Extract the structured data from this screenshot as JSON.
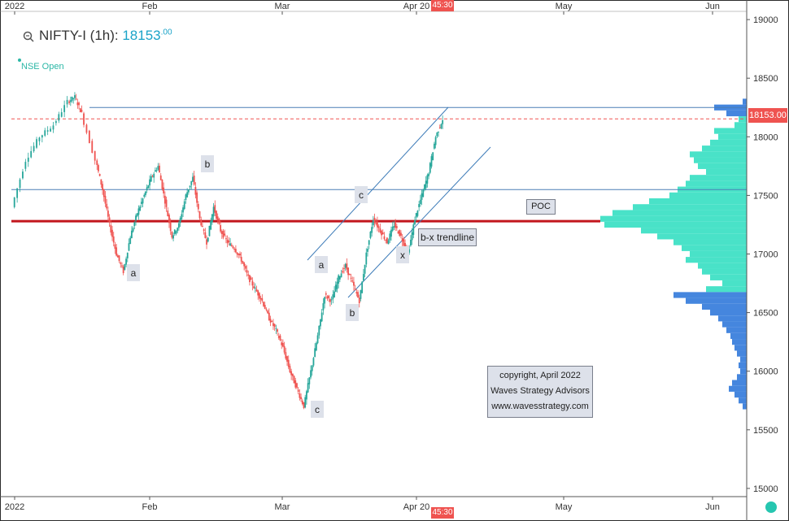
{
  "header": {
    "symbol": "NIFTY-I (1h):",
    "price_main": "18153",
    "price_decimals": ".00",
    "session_label": "NSE Open"
  },
  "price_tag": "18153.00",
  "time_tag_top": "45:30",
  "time_tag_bottom": "45:30",
  "copyright": {
    "line1": "copyright, April 2022",
    "line2": "Waves Strategy Advisors",
    "line3": "www.wavesstrategy.com"
  },
  "labels": {
    "poc": "POC",
    "bx_trendline": "b-x trendline"
  },
  "chart_data": {
    "type": "candlestick",
    "x_ticks_top": [
      "2022",
      "Feb",
      "Mar",
      "Apr 20",
      "May",
      "Jun"
    ],
    "x_ticks_bottom": [
      "2022",
      "Feb",
      "Mar",
      "Apr 20",
      "May",
      "Jun"
    ],
    "y_ticks": [
      "19000",
      "18500",
      "18000",
      "17500",
      "17000",
      "16500",
      "16000",
      "15500",
      "15000"
    ],
    "ylim": [
      14930,
      19070
    ],
    "last_price": 18153,
    "path": [
      [
        0,
        17400
      ],
      [
        2,
        17800
      ],
      [
        4,
        18000
      ],
      [
        6,
        18100
      ],
      [
        8,
        18300
      ],
      [
        9,
        18340
      ],
      [
        10,
        18200
      ],
      [
        12,
        17800
      ],
      [
        13,
        17550
      ],
      [
        14,
        17250
      ],
      [
        15,
        17000
      ],
      [
        16,
        16850
      ],
      [
        17,
        17150
      ],
      [
        18,
        17350
      ],
      [
        19,
        17500
      ],
      [
        20,
        17650
      ],
      [
        21,
        17750
      ],
      [
        22,
        17450
      ],
      [
        23,
        17150
      ],
      [
        24,
        17250
      ],
      [
        25,
        17500
      ],
      [
        26,
        17650
      ],
      [
        27,
        17300
      ],
      [
        28,
        17100
      ],
      [
        29,
        17400
      ],
      [
        30,
        17200
      ],
      [
        31,
        17100
      ],
      [
        32,
        17050
      ],
      [
        33,
        16950
      ],
      [
        34,
        16800
      ],
      [
        35,
        16700
      ],
      [
        36,
        16600
      ],
      [
        37,
        16450
      ],
      [
        38,
        16350
      ],
      [
        39,
        16200
      ],
      [
        40,
        16000
      ],
      [
        41,
        15850
      ],
      [
        42,
        15700
      ],
      [
        43,
        16000
      ],
      [
        44,
        16300
      ],
      [
        45,
        16650
      ],
      [
        46,
        16600
      ],
      [
        47,
        16800
      ],
      [
        48,
        16900
      ],
      [
        49,
        16750
      ],
      [
        50,
        16600
      ],
      [
        51,
        17000
      ],
      [
        52,
        17300
      ],
      [
        53,
        17200
      ],
      [
        54,
        17100
      ],
      [
        55,
        17250
      ],
      [
        56,
        17150
      ],
      [
        57,
        17000
      ],
      [
        58,
        17300
      ],
      [
        59,
        17500
      ],
      [
        60,
        17700
      ],
      [
        61,
        18000
      ],
      [
        62,
        18150
      ]
    ],
    "wave_labels": [
      "a",
      "b",
      "c",
      "a",
      "b",
      "c",
      "x"
    ],
    "horizontal_levels": [
      {
        "name": "upper-resistance",
        "value": 18250,
        "color": "#4a7fb5"
      },
      {
        "name": "last-price-line",
        "value": 18153,
        "color": "#ef5350"
      },
      {
        "name": "support",
        "value": 17550,
        "color": "#4a7fb5"
      },
      {
        "name": "poc",
        "value": 17280,
        "color": "#c2161d"
      }
    ],
    "volume_profile": {
      "buckets": [
        18300,
        18250,
        18200,
        18150,
        18100,
        18050,
        18000,
        17950,
        17900,
        17850,
        17800,
        17750,
        17700,
        17650,
        17600,
        17550,
        17500,
        17450,
        17400,
        17350,
        17300,
        17250,
        17200,
        17150,
        17100,
        17050,
        17000,
        16950,
        16900,
        16850,
        16800,
        16750,
        16700,
        16650,
        16600,
        16550,
        16500,
        16450,
        16400,
        16350,
        16300,
        16250,
        16200,
        16150,
        16100,
        16050,
        16000,
        15950,
        15900,
        15850,
        15800,
        15750,
        15700
      ],
      "values": [
        5,
        40,
        25,
        10,
        15,
        40,
        35,
        45,
        55,
        70,
        65,
        60,
        50,
        70,
        75,
        85,
        95,
        120,
        140,
        165,
        180,
        175,
        130,
        110,
        90,
        80,
        70,
        75,
        60,
        55,
        45,
        30,
        50,
        90,
        75,
        55,
        45,
        35,
        30,
        25,
        20,
        18,
        15,
        12,
        8,
        10,
        8,
        12,
        18,
        22,
        15,
        10,
        5
      ],
      "up_color": "#3fe0c5",
      "down_color": "#3b7fdc"
    }
  }
}
